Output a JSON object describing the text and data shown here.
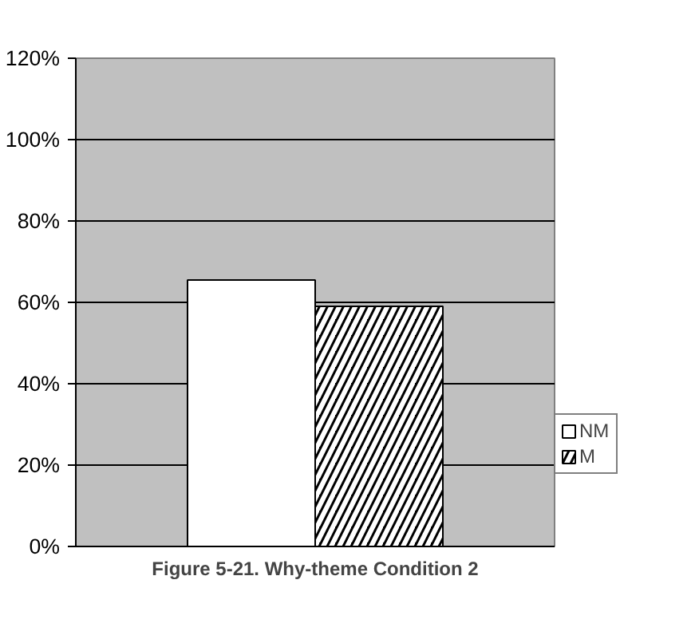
{
  "chart_data": {
    "type": "bar",
    "title": "Figure 5-21. Why-theme Condition 2",
    "categories": [
      null
    ],
    "series": [
      {
        "name": "NM",
        "color": "#ffffff",
        "values": [
          65.5
        ]
      },
      {
        "name": "M",
        "color": "#000000",
        "values": [
          59
        ]
      }
    ],
    "ylim": [
      0,
      120
    ],
    "yticks": [
      {
        "value": 0,
        "label": "0%"
      },
      {
        "value": 20,
        "label": "20%"
      },
      {
        "value": 40,
        "label": "40%"
      },
      {
        "value": 60,
        "label": "60%"
      },
      {
        "value": 80,
        "label": "80%"
      },
      {
        "value": 100,
        "label": "100%"
      },
      {
        "value": 120,
        "label": "120%"
      }
    ],
    "grid": "y",
    "legend": "right"
  }
}
